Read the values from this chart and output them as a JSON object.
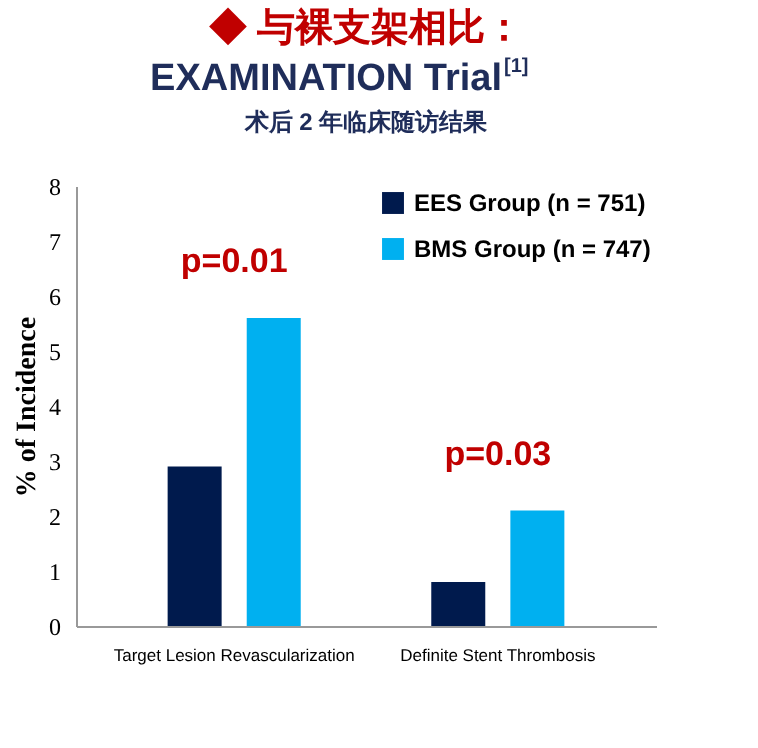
{
  "chart_data": {
    "type": "bar",
    "title": "◆ 与裸支架相比：",
    "subtitle": [
      "EXAMINATION Trial$^{[1]}$",
      "术后 2 年临床随访结果"
    ],
    "ylabel": "% of Incidence",
    "categories": [
      "Target Lesion Revascularization",
      "Definite Stent Thrombosis"
    ],
    "series": [
      {
        "name": "EES Group (n = 751)",
        "color": "#001a4d",
        "values": [
          2.9,
          0.8
        ]
      },
      {
        "name": "BMS Group (n = 747)",
        "color": "#00b0f0",
        "values": [
          5.6,
          2.1
        ]
      }
    ],
    "ylim": [
      0,
      8
    ],
    "yticks": [
      0,
      1,
      2,
      3,
      4,
      5,
      6,
      7,
      8
    ],
    "grid": false,
    "legend": "top right",
    "annotations": [
      "p=0.01",
      "p=0.03"
    ]
  }
}
